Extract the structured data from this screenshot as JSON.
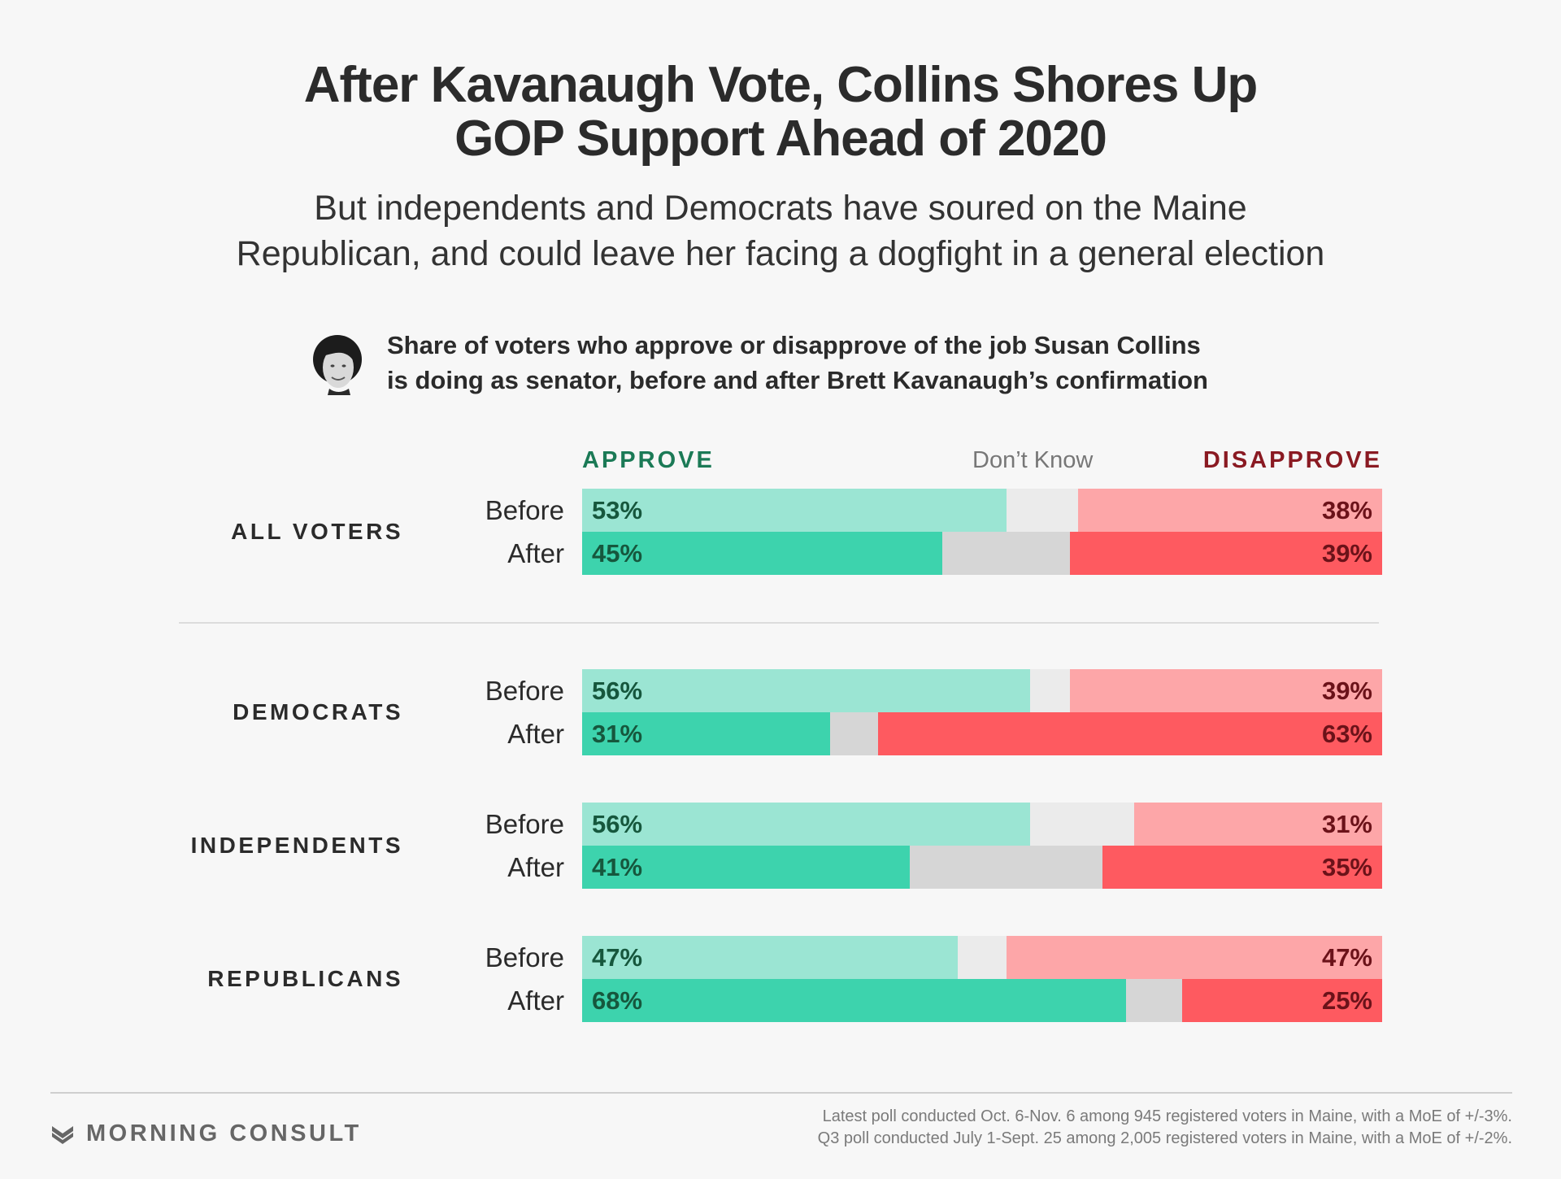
{
  "title_lines": [
    "After Kavanaugh Vote, Collins Shores Up",
    "GOP Support Ahead of 2020"
  ],
  "subtitle_lines": [
    "But independents and Democrats have soured on the Maine",
    "Republican, and could leave her facing a dogfight in a general election"
  ],
  "description_lines": [
    "Share of voters who approve or disapprove of the job Susan Collins",
    "is doing as senator, before and after Brett Kavanaugh’s confirmation"
  ],
  "headers": {
    "approve": "APPROVE",
    "dont_know": "Don’t Know",
    "disapprove": "DISAPPROVE"
  },
  "colors": {
    "approve_before": "#9be5d3",
    "approve_after": "#3dd3ad",
    "dk_before": "#ebebeb",
    "dk_after": "#d6d6d6",
    "disapprove_before": "#fda6a8",
    "disapprove_after": "#fe5a60"
  },
  "chart_data": {
    "type": "bar",
    "stacked": true,
    "orientation": "horizontal",
    "segments": [
      "Approve",
      "Don’t Know",
      "Disapprove"
    ],
    "groups": [
      {
        "name": "ALL VOTERS",
        "rows": [
          {
            "label": "Before",
            "approve": 53,
            "disapprove": 38,
            "dont_know": 9,
            "approve_text": "53%",
            "disapprove_text": "38%"
          },
          {
            "label": "After",
            "approve": 45,
            "disapprove": 39,
            "dont_know": 16,
            "approve_text": "45%",
            "disapprove_text": "39%"
          }
        ]
      },
      {
        "name": "DEMOCRATS",
        "rows": [
          {
            "label": "Before",
            "approve": 56,
            "disapprove": 39,
            "dont_know": 5,
            "approve_text": "56%",
            "disapprove_text": "39%"
          },
          {
            "label": "After",
            "approve": 31,
            "disapprove": 63,
            "dont_know": 6,
            "approve_text": "31%",
            "disapprove_text": "63%"
          }
        ]
      },
      {
        "name": "INDEPENDENTS",
        "rows": [
          {
            "label": "Before",
            "approve": 56,
            "disapprove": 31,
            "dont_know": 13,
            "approve_text": "56%",
            "disapprove_text": "31%"
          },
          {
            "label": "After",
            "approve": 41,
            "disapprove": 35,
            "dont_know": 24,
            "approve_text": "41%",
            "disapprove_text": "35%"
          }
        ]
      },
      {
        "name": "REPUBLICANS",
        "rows": [
          {
            "label": "Before",
            "approve": 47,
            "disapprove": 47,
            "dont_know": 6,
            "approve_text": "47%",
            "disapprove_text": "47%"
          },
          {
            "label": "After",
            "approve": 68,
            "disapprove": 25,
            "dont_know": 7,
            "approve_text": "68%",
            "disapprove_text": "25%"
          }
        ]
      }
    ]
  },
  "brand": {
    "name": "MORNING CONSULT",
    "icon": "morning-consult-logo-icon"
  },
  "notes": [
    "Latest poll conducted Oct. 6-Nov. 6 among 945 registered voters in Maine, with a MoE of +/-3%.",
    "Q3 poll conducted July 1-Sept. 25 among 2,005 registered voters in Maine, with a MoE of +/-2%."
  ]
}
